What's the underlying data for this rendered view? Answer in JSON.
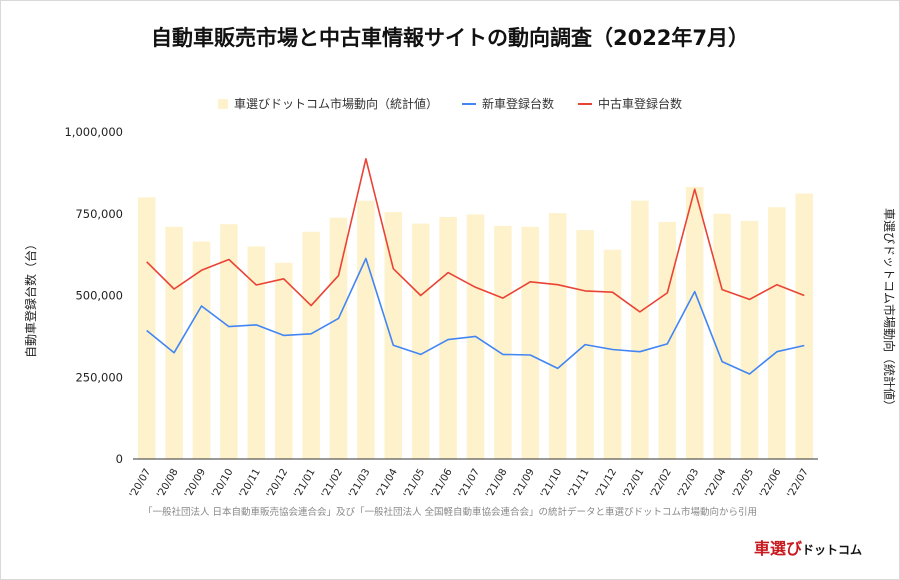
{
  "chart_data": {
    "type": "bar",
    "title": "自動車販売市場と中古車情報サイトの動向調査（2022年7月）",
    "ylabel": "自動車登録台数（台）",
    "y2label": "車選びドットコム市場動向（統計値）",
    "ylim": [
      0,
      1000000
    ],
    "yticks": [
      "0",
      "250,000",
      "500,000",
      "750,000",
      "1,000,000"
    ],
    "ytick_values": [
      0,
      250000,
      500000,
      750000,
      1000000
    ],
    "categories": [
      "'20/07",
      "'20/08",
      "'20/09",
      "'20/10",
      "'20/11",
      "'20/12",
      "'21/01",
      "'21/02",
      "'21/03",
      "'21/04",
      "'21/05",
      "'21/06",
      "'21/07",
      "'21/08",
      "'21/09",
      "'21/10",
      "'21/11",
      "'21/12",
      "'22/01",
      "'22/02",
      "'22/03",
      "'22/04",
      "'22/05",
      "'22/06",
      "'22/07"
    ],
    "legend_position": "top",
    "grid": false,
    "series": [
      {
        "name": "車選びドットコム市場動向（統計値）",
        "kind": "bar",
        "color": "#fdf2cc",
        "values": [
          800000,
          710000,
          665000,
          718000,
          650000,
          600000,
          695000,
          738000,
          790000,
          755000,
          720000,
          740000,
          748000,
          713000,
          710000,
          752000,
          700000,
          640000,
          790000,
          725000,
          832000,
          750000,
          728000,
          770000,
          812000
        ]
      },
      {
        "name": "新車登録台数",
        "kind": "line",
        "color": "#4285f4",
        "values": [
          393000,
          325000,
          468000,
          405000,
          410000,
          378000,
          383000,
          430000,
          613000,
          348000,
          320000,
          365000,
          375000,
          320000,
          318000,
          277000,
          350000,
          335000,
          328000,
          352000,
          512000,
          298000,
          260000,
          328000,
          347000
        ]
      },
      {
        "name": "中古車登録台数",
        "kind": "line",
        "color": "#ea4335",
        "values": [
          603000,
          520000,
          577000,
          610000,
          532000,
          551000,
          469000,
          561000,
          918000,
          582000,
          500000,
          570000,
          525000,
          492000,
          542000,
          533000,
          514000,
          510000,
          450000,
          508000,
          825000,
          518000,
          488000,
          533000,
          500000
        ]
      }
    ]
  },
  "source_note": "「一般社団法人 日本自動車販売協会連合会」及び「一般社団法人 全国軽自動車協会連合会」の統計データと車選びドットコム市場動向から引用",
  "brand": {
    "part1": "車選び",
    "part2": "ドットコム"
  }
}
